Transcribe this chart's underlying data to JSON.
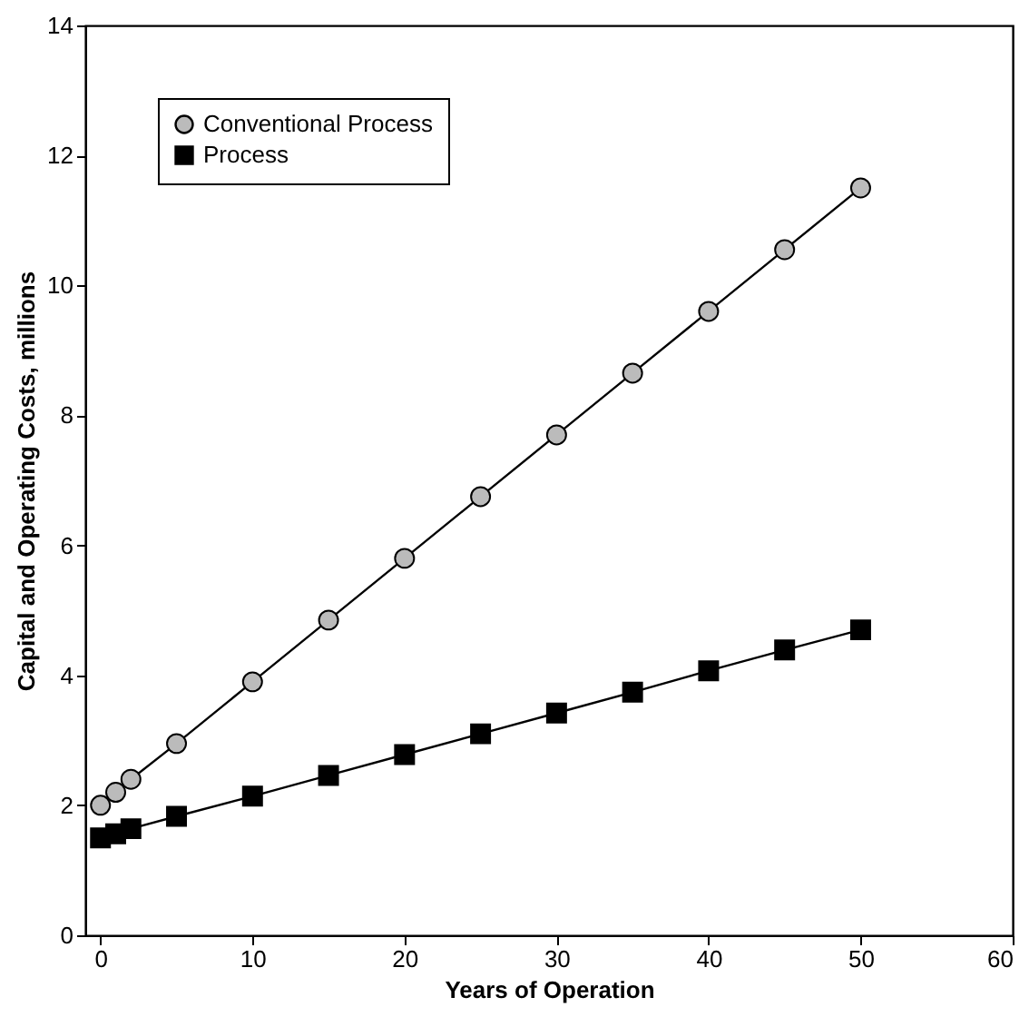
{
  "chart_data": {
    "type": "line",
    "xlabel": "Years of Operation",
    "ylabel": "Capital and Operating Costs, millions",
    "x": [
      0,
      1,
      2,
      5,
      10,
      15,
      20,
      25,
      30,
      35,
      40,
      45,
      50
    ],
    "series": [
      {
        "name": "Conventional Process",
        "color": "#000000",
        "marker": "circle",
        "values": [
          2.0,
          2.2,
          2.4,
          2.95,
          3.9,
          4.85,
          5.8,
          6.75,
          7.7,
          8.65,
          9.6,
          10.55,
          11.5
        ]
      },
      {
        "name": "Process",
        "color": "#000000",
        "marker": "square",
        "values": [
          1.5,
          1.56,
          1.64,
          1.83,
          2.14,
          2.46,
          2.78,
          3.1,
          3.42,
          3.74,
          4.07,
          4.39,
          4.7
        ]
      }
    ],
    "xlim": [
      -1,
      60
    ],
    "xticks": [
      0,
      10,
      20,
      30,
      40,
      50,
      60
    ],
    "ylim": [
      0,
      14
    ],
    "yticks": [
      0,
      2,
      4,
      6,
      8,
      10,
      12,
      14
    ],
    "grid": false,
    "legend": "top left",
    "line_style": "solid"
  }
}
